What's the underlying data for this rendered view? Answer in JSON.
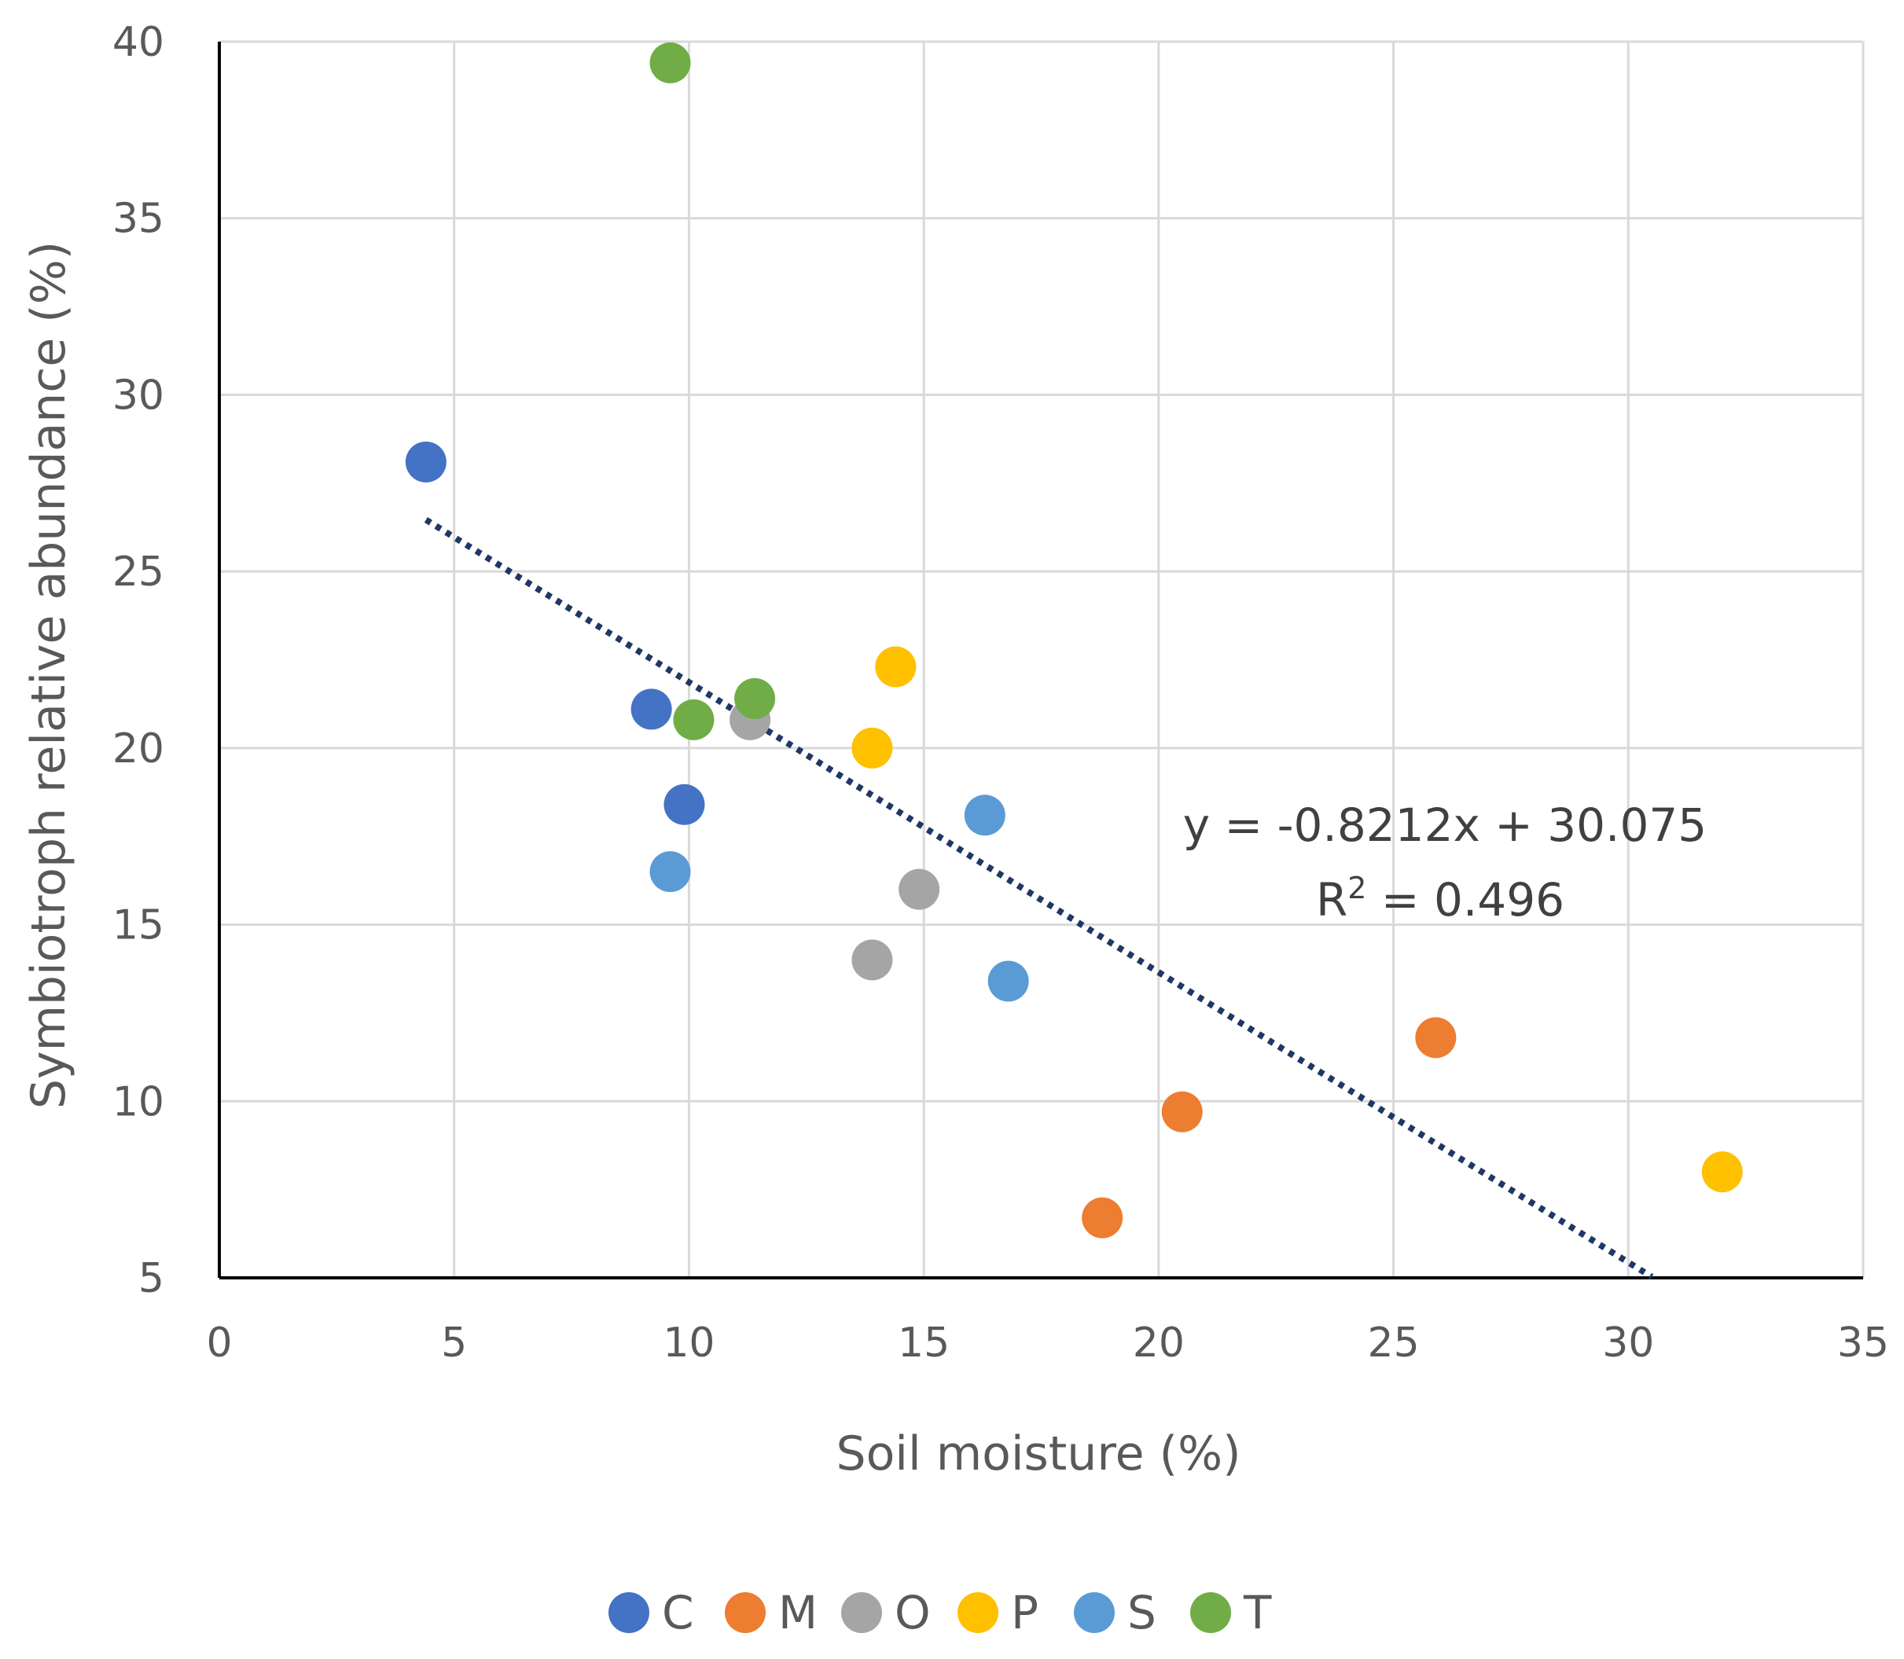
{
  "chart_data": {
    "type": "scatter",
    "title": "",
    "xlabel": "Soil moisture (%)",
    "ylabel": "Symbiotroph relative abundance (%)",
    "xlim": [
      0,
      35
    ],
    "ylim": [
      5,
      40
    ],
    "xticks": [
      0,
      5,
      10,
      15,
      20,
      25,
      30,
      35
    ],
    "yticks": [
      5,
      10,
      15,
      20,
      25,
      30,
      35,
      40
    ],
    "grid": true,
    "legend_position": "bottom",
    "series": [
      {
        "name": "C",
        "color": "#4472c4",
        "points": [
          [
            4.4,
            28.1
          ],
          [
            9.2,
            21.1
          ],
          [
            9.9,
            18.4
          ]
        ]
      },
      {
        "name": "M",
        "color": "#ed7d31",
        "points": [
          [
            18.8,
            6.7
          ],
          [
            20.5,
            9.7
          ],
          [
            25.9,
            11.8
          ]
        ]
      },
      {
        "name": "O",
        "color": "#a5a5a5",
        "points": [
          [
            11.3,
            20.8
          ],
          [
            13.9,
            14.0
          ],
          [
            14.9,
            16.0
          ]
        ]
      },
      {
        "name": "P",
        "color": "#ffc000",
        "points": [
          [
            13.9,
            20.0
          ],
          [
            14.4,
            22.3
          ],
          [
            32.0,
            8.0
          ]
        ]
      },
      {
        "name": "S",
        "color": "#5b9bd5",
        "points": [
          [
            9.6,
            16.5
          ],
          [
            16.3,
            18.1
          ],
          [
            16.8,
            13.4
          ]
        ]
      },
      {
        "name": "T",
        "color": "#70ad47",
        "points": [
          [
            9.6,
            39.4
          ],
          [
            10.1,
            20.8
          ],
          [
            11.4,
            21.4
          ]
        ]
      }
    ],
    "trendline": {
      "type": "linear",
      "slope": -0.8212,
      "intercept": 30.075,
      "x_range": [
        4.4,
        30.5
      ],
      "color": "#1f3864",
      "style": "dotted",
      "equation_label": "y = -0.8212x + 30.075",
      "r2_label_prefix": "R",
      "r2_label_sup": "2",
      "r2_label_suffix": " = 0.496"
    }
  }
}
